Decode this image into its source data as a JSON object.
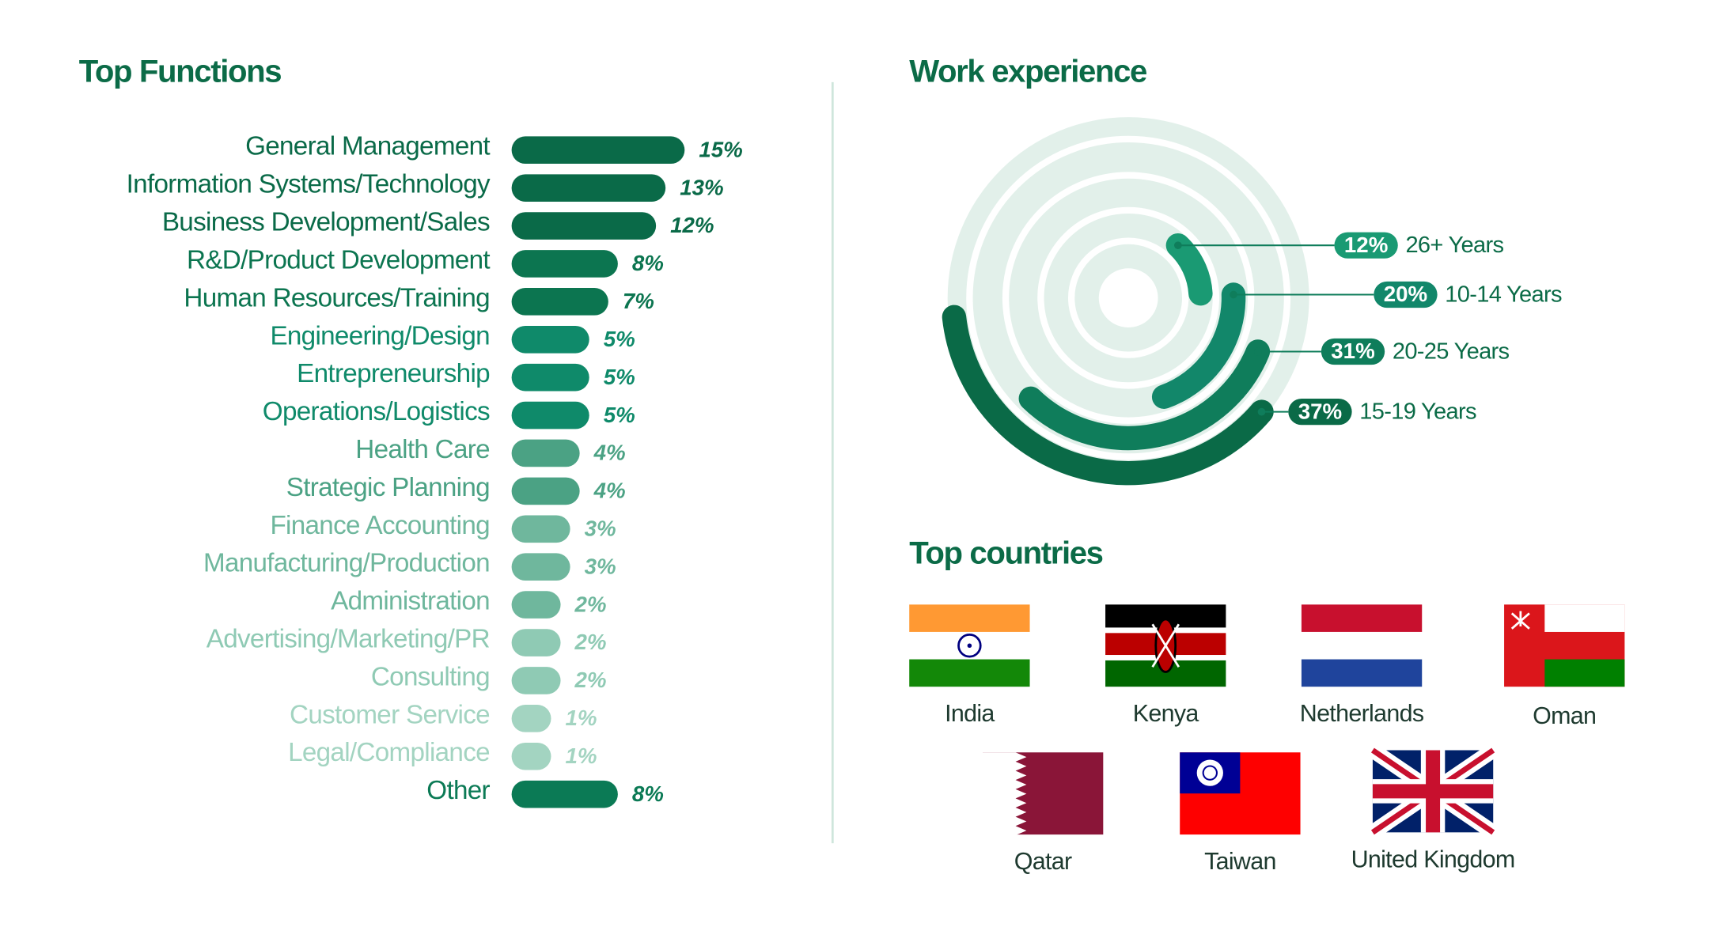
{
  "chart_data": [
    {
      "type": "bar",
      "title": "Top Functions",
      "categories": [
        "General Management",
        "Information Systems/Technology",
        "Business Development/Sales",
        "R&D/Product Development",
        "Human Resources/Training",
        "Engineering/Design",
        "Entrepreneurship",
        "Operations/Logistics",
        "Health Care",
        "Strategic Planning",
        "Finance Accounting",
        "Manufacturing/Production",
        "Administration",
        "Advertising/Marketing/PR",
        "Consulting",
        "Customer Service",
        "Legal/Compliance",
        "Other"
      ],
      "values": [
        15,
        13,
        12,
        8,
        7,
        5,
        5,
        5,
        4,
        4,
        3,
        3,
        2,
        2,
        2,
        1,
        1,
        8
      ],
      "value_labels": [
        "15%",
        "13%",
        "12%",
        "8%",
        "7%",
        "5%",
        "5%",
        "5%",
        "4%",
        "4%",
        "3%",
        "3%",
        "2%",
        "2%",
        "2%",
        "1%",
        "1%",
        "8%"
      ],
      "colors": [
        "#0a6a48",
        "#0a6a48",
        "#0a6a48",
        "#0c7550",
        "#0c7550",
        "#0f8a6a",
        "#0f8a6a",
        "#0f8a6a",
        "#4ba284",
        "#4ba284",
        "#6fb79d",
        "#6fb79d",
        "#6fb79d",
        "#8fcab4",
        "#8fcab4",
        "#a3d4c1",
        "#a3d4c1",
        "#0b7a55"
      ]
    },
    {
      "type": "radial-bar",
      "title": "Work experience",
      "categories": [
        "26+ Years",
        "10-14 Years",
        "20-25 Years",
        "15-19 Years"
      ],
      "values": [
        12,
        20,
        31,
        37
      ],
      "value_labels": [
        "12%",
        "20%",
        "31%",
        "37%"
      ],
      "colors": [
        "#1a9a73",
        "#12876a",
        "#0f7d5b",
        "#0a6a47"
      ]
    }
  ],
  "countries": {
    "title": "Top countries",
    "items": [
      "India",
      "Kenya",
      "Netherlands",
      "Oman",
      "Qatar",
      "Taiwan",
      "United Kingdom"
    ]
  }
}
